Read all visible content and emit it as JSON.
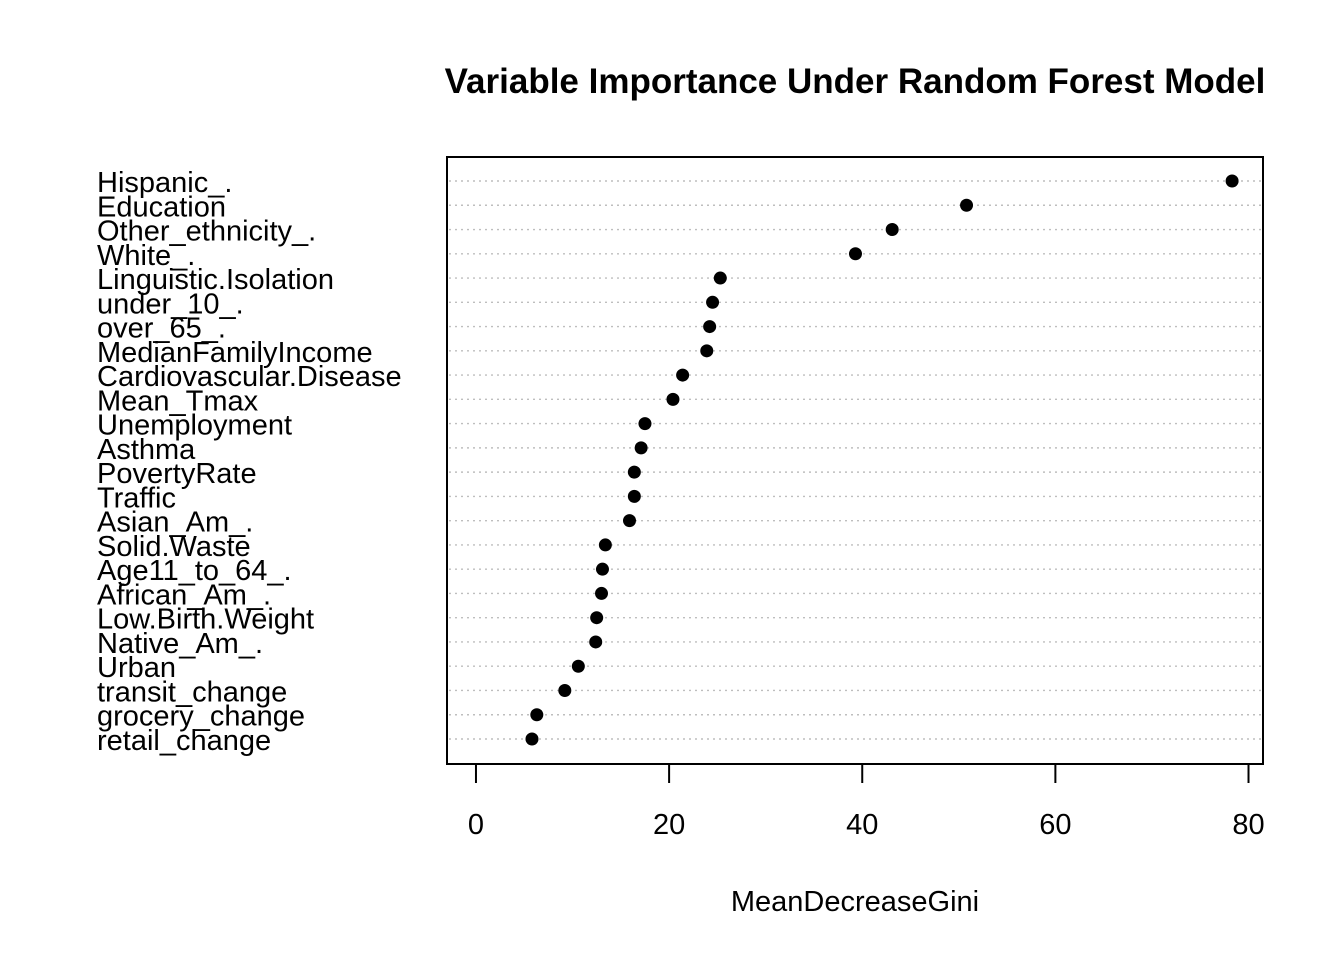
{
  "chart_data": {
    "type": "scatter",
    "title": "Variable Importance Under Random Forest Model",
    "xlabel": "MeanDecreaseGini",
    "ylabel": "",
    "xlim": [
      -3,
      81.5
    ],
    "x_ticks": [
      0,
      20,
      40,
      60,
      80
    ],
    "x_tick_labels": [
      "0",
      "20",
      "40",
      "60",
      "80"
    ],
    "grid": "dotted horizontal guide lines",
    "point_color": "#000000",
    "categories": [
      "Hispanic_.",
      "Education",
      "Other_ethnicity_.",
      "White_.",
      "Linguistic.Isolation",
      "under_10_.",
      "over_65_.",
      "MedianFamilyIncome",
      "Cardiovascular.Disease",
      "Mean_Tmax",
      "Unemployment",
      "Asthma",
      "PovertyRate",
      "Traffic",
      "Asian_Am_.",
      "Solid.Waste",
      "Age11_to_64_.",
      "African_Am_.",
      "Low.Birth.Weight",
      "Native_Am_.",
      "Urban",
      "transit_change",
      "grocery_change",
      "retail_change"
    ],
    "values": [
      78.3,
      50.8,
      43.1,
      39.3,
      25.3,
      24.5,
      24.2,
      23.9,
      21.4,
      20.4,
      17.5,
      17.1,
      16.4,
      16.4,
      15.9,
      13.4,
      13.1,
      13.0,
      12.5,
      12.4,
      10.6,
      9.2,
      6.3,
      5.8
    ]
  }
}
